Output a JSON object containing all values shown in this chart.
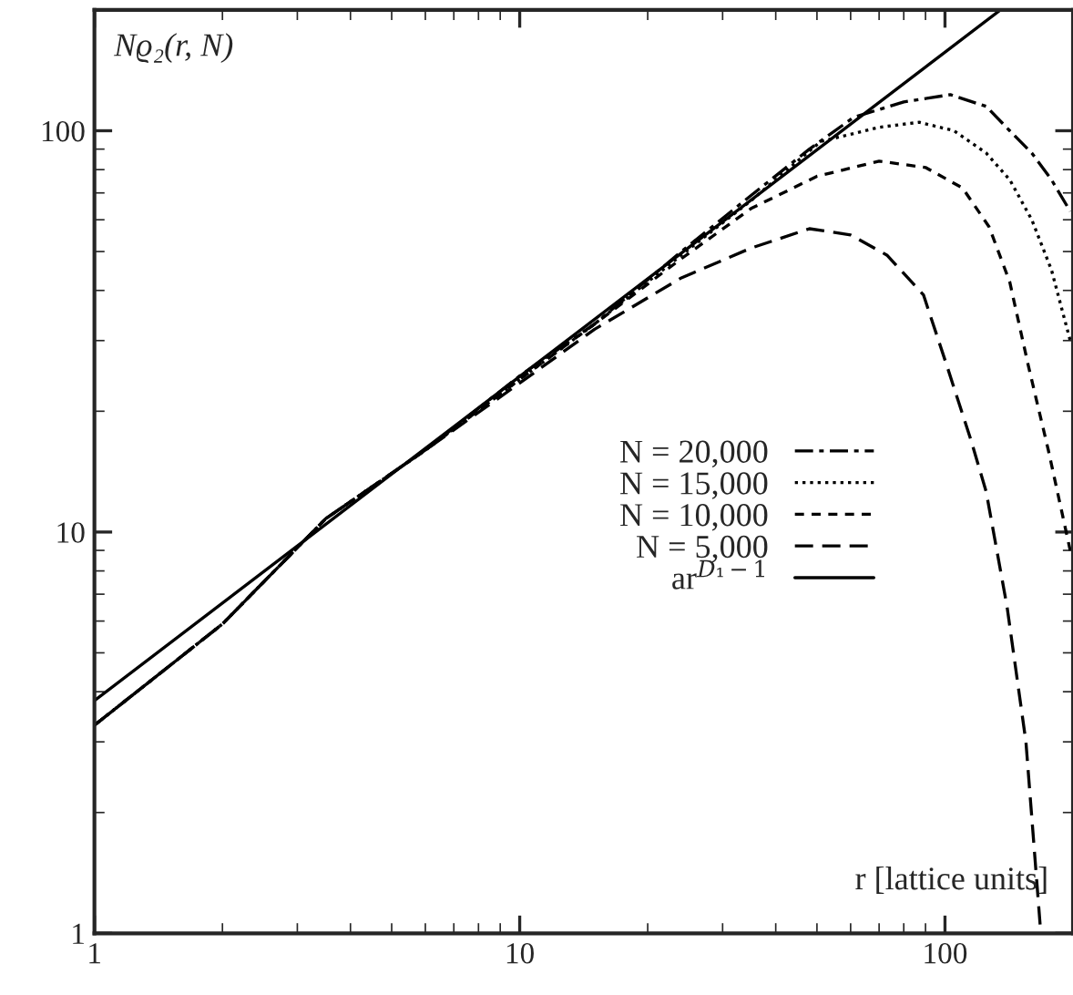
{
  "chart_data": {
    "type": "line",
    "log": "xy",
    "xlabel": "r [lattice units]",
    "ylabel": "Nϱ₂(r, N)",
    "xlim": [
      1,
      200
    ],
    "ylim": [
      1,
      200
    ],
    "xticks": [
      1,
      10,
      100
    ],
    "yticks": [
      1,
      10,
      100
    ],
    "grid": false,
    "legend": "right",
    "marker": "none",
    "series": [
      {
        "name": "N = 20,000",
        "color": "#000000",
        "line_style": "dashdot",
        "x": [
          1,
          2,
          3.5,
          6,
          10,
          15,
          24,
          35,
          48,
          61,
          80,
          103,
          125,
          142,
          160,
          178,
          197
        ],
        "values": [
          3.3,
          5.9,
          10.8,
          16,
          24.5,
          33,
          50,
          69,
          90,
          108,
          118,
          123,
          115,
          100,
          88,
          75.5,
          63
        ]
      },
      {
        "name": "N = 15,000",
        "color": "#000000",
        "line_style": "dotted",
        "x": [
          1,
          2,
          3.5,
          6,
          10,
          15,
          24,
          35,
          51,
          70,
          87,
          105,
          125,
          142,
          160,
          178,
          197
        ],
        "values": [
          3.3,
          5.9,
          10.8,
          16,
          24,
          33,
          49,
          67,
          94,
          102,
          105,
          100,
          88,
          75.5,
          60,
          45,
          30
        ]
      },
      {
        "name": "N = 10,000",
        "color": "#000000",
        "line_style": "dashed",
        "x": [
          1,
          2,
          3.5,
          6,
          10,
          15,
          24,
          35,
          50,
          70,
          90,
          110,
          127,
          142,
          157,
          175,
          197
        ],
        "values": [
          3.3,
          5.9,
          10.8,
          16,
          24,
          33,
          48,
          64,
          77,
          84,
          81,
          72,
          57.6,
          42,
          26,
          16,
          9
        ]
      },
      {
        "name": "N = 5,000",
        "color": "#000000",
        "line_style": "long dashed",
        "x": [
          1,
          2,
          3.5,
          6,
          10,
          15,
          24,
          35,
          48,
          60,
          73,
          89,
          101,
          115,
          125,
          140,
          155,
          168
        ],
        "values": [
          3.3,
          5.9,
          10.8,
          16,
          23.5,
          32,
          43,
          51,
          57,
          55,
          49,
          39,
          26,
          17,
          12.6,
          6.5,
          3,
          1
        ]
      },
      {
        "name": "ar$^{D₁−1}$",
        "color": "#000000",
        "line_style": "solid",
        "x": [
          1,
          135
        ],
        "values": [
          3.8,
          200
        ]
      }
    ]
  }
}
